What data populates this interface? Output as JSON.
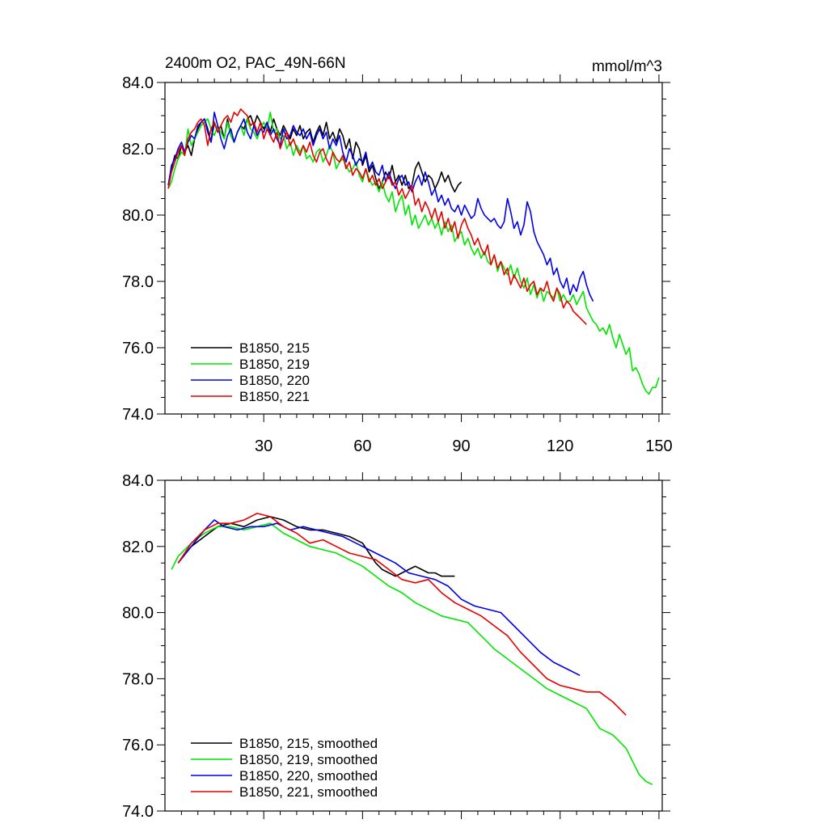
{
  "title": "2400m O2, PAC_49N-66N",
  "units": "mmol/m^3",
  "colors": {
    "B1850, 215": "#000000",
    "B1850, 219": "#00e600",
    "B1850, 220": "#0000e6",
    "B1850, 221": "#e60000"
  },
  "chart_data": [
    {
      "type": "line",
      "title": "2400m O2, PAC_49N-66N",
      "ylabel": "mmol/m^3",
      "xlim": [
        0,
        151
      ],
      "ylim": [
        74,
        84
      ],
      "x_ticks": [
        "30",
        "60",
        "90",
        "120",
        "150"
      ],
      "y_ticks": [
        "84.0",
        "82.0",
        "80.0",
        "78.0",
        "76.0",
        "74.0"
      ],
      "legend_position": "bottom-left",
      "series": [
        {
          "name": "B1850, 215",
          "color": "#000000",
          "x_start": 1,
          "values": [
            80.9,
            81.4,
            81.8,
            81.7,
            82.1,
            81.9,
            82.1,
            81.8,
            82.3,
            82.6,
            82.8,
            82.9,
            82.6,
            82.2,
            82.8,
            82.5,
            82.7,
            82.3,
            82.9,
            82.4,
            82.2,
            82.5,
            82.7,
            82.6,
            82.9,
            83.0,
            82.7,
            83.0,
            82.8,
            82.6,
            82.8,
            82.5,
            82.9,
            82.6,
            82.4,
            82.7,
            82.5,
            82.3,
            82.6,
            82.4,
            82.7,
            82.3,
            82.5,
            82.6,
            82.2,
            82.5,
            82.7,
            82.4,
            82.8,
            82.3,
            82.5,
            82.2,
            82.6,
            82.4,
            82.0,
            82.3,
            81.7,
            82.2,
            82.0,
            81.5,
            81.8,
            81.3,
            81.5,
            81.1,
            80.8,
            81.0,
            81.3,
            81.1,
            81.5,
            81.0,
            81.2,
            80.9,
            81.2,
            80.8,
            80.9,
            81.4,
            81.6,
            81.3,
            81.0,
            81.2,
            81.1,
            80.8,
            81.0,
            81.3,
            81.0,
            81.2,
            80.9,
            80.7,
            80.9,
            81.0
          ]
        },
        {
          "name": "B1850, 219",
          "color": "#00e600",
          "x_start": 1,
          "values": [
            80.8,
            81.0,
            81.4,
            81.7,
            81.9,
            81.8,
            82.6,
            82.1,
            82.3,
            82.5,
            82.7,
            82.8,
            82.9,
            82.6,
            82.4,
            82.7,
            82.5,
            82.3,
            82.8,
            82.4,
            82.2,
            82.5,
            82.7,
            82.4,
            82.9,
            82.6,
            82.5,
            82.3,
            82.6,
            82.8,
            82.6,
            83.1,
            82.5,
            82.6,
            82.3,
            82.4,
            82.0,
            82.2,
            81.8,
            82.1,
            81.9,
            82.1,
            81.7,
            81.8,
            81.6,
            81.9,
            82.0,
            81.6,
            81.8,
            82.1,
            81.9,
            81.4,
            81.6,
            81.7,
            81.5,
            81.3,
            81.4,
            81.6,
            81.2,
            81.0,
            81.4,
            81.1,
            80.9,
            81.0,
            80.7,
            81.0,
            80.6,
            80.4,
            80.7,
            80.1,
            80.4,
            80.6,
            80.0,
            80.3,
            79.7,
            80.0,
            79.6,
            79.8,
            80.0,
            79.7,
            79.9,
            79.6,
            79.8,
            79.4,
            79.8,
            79.5,
            79.7,
            79.2,
            79.4,
            79.5,
            79.1,
            79.3,
            79.0,
            78.8,
            79.0,
            78.7,
            78.9,
            78.6,
            78.5,
            78.8,
            78.3,
            78.6,
            78.4,
            78.2,
            78.5,
            78.1,
            78.4,
            78.0,
            77.8,
            78.1,
            77.6,
            77.9,
            77.5,
            77.8,
            77.4,
            77.7,
            77.6,
            77.5,
            77.8,
            77.4,
            77.6,
            77.4,
            77.4,
            77.6,
            77.3,
            77.5,
            77.7,
            77.2,
            77.0,
            76.8,
            76.7,
            76.5,
            76.6,
            76.4,
            76.7,
            76.3,
            76.0,
            76.4,
            76.1,
            75.8,
            76.0,
            75.3,
            75.4,
            75.2,
            74.9,
            74.7,
            74.6,
            74.8,
            74.8,
            75.1
          ]
        },
        {
          "name": "B1850, 220",
          "color": "#0000e6",
          "x_start": 1,
          "values": [
            80.9,
            81.5,
            81.7,
            82.0,
            82.2,
            81.9,
            82.2,
            82.4,
            82.3,
            82.7,
            82.8,
            82.9,
            82.5,
            82.2,
            83.1,
            82.7,
            82.3,
            82.0,
            82.4,
            82.6,
            82.2,
            82.5,
            82.7,
            82.9,
            82.5,
            82.3,
            82.7,
            82.4,
            82.6,
            82.5,
            82.8,
            82.4,
            82.6,
            82.3,
            82.1,
            82.6,
            82.3,
            82.4,
            82.7,
            82.5,
            82.4,
            82.6,
            82.3,
            82.5,
            82.1,
            82.4,
            82.6,
            82.3,
            82.5,
            82.0,
            82.3,
            82.1,
            82.4,
            81.9,
            81.6,
            82.0,
            81.8,
            81.5,
            81.7,
            81.6,
            81.9,
            81.4,
            81.6,
            81.3,
            81.2,
            81.5,
            81.0,
            81.3,
            81.0,
            80.8,
            81.1,
            81.2,
            80.9,
            81.0,
            80.7,
            81.0,
            81.2,
            80.9,
            81.3,
            81.0,
            80.6,
            80.8,
            80.4,
            80.6,
            80.3,
            80.5,
            80.2,
            80.1,
            80.3,
            80.0,
            80.3,
            80.1,
            79.9,
            80.0,
            80.5,
            80.2,
            80.0,
            79.9,
            79.8,
            79.9,
            79.7,
            79.6,
            79.8,
            80.5,
            80.1,
            79.6,
            79.8,
            79.4,
            79.7,
            80.4,
            80.1,
            79.5,
            79.2,
            79.0,
            78.8,
            78.5,
            78.7,
            78.2,
            78.4,
            78.0,
            77.8,
            78.1,
            77.6,
            77.9,
            77.7,
            78.1,
            78.3,
            77.9,
            77.6,
            77.4
          ]
        },
        {
          "name": "B1850, 221",
          "color": "#e60000",
          "x_start": 1,
          "values": [
            80.8,
            81.3,
            81.6,
            81.9,
            82.1,
            81.8,
            82.3,
            82.5,
            82.6,
            82.8,
            82.9,
            82.7,
            82.1,
            82.6,
            82.8,
            82.5,
            82.7,
            82.9,
            83.0,
            82.8,
            83.1,
            83.0,
            83.2,
            83.1,
            83.0,
            82.7,
            82.8,
            82.5,
            82.8,
            82.3,
            82.6,
            82.4,
            82.2,
            82.5,
            82.0,
            82.3,
            82.5,
            82.1,
            82.3,
            82.0,
            81.8,
            82.1,
            81.9,
            82.2,
            81.8,
            81.6,
            81.9,
            82.0,
            81.7,
            81.5,
            81.9,
            81.7,
            81.6,
            81.8,
            81.4,
            81.6,
            81.2,
            81.4,
            81.3,
            81.1,
            81.4,
            81.0,
            81.2,
            80.9,
            81.1,
            80.8,
            81.0,
            81.2,
            80.9,
            81.0,
            80.6,
            80.8,
            80.5,
            80.7,
            80.9,
            80.3,
            80.5,
            80.1,
            80.4,
            80.2,
            79.9,
            80.2,
            79.8,
            80.1,
            79.6,
            79.9,
            79.5,
            79.8,
            79.3,
            79.7,
            79.9,
            79.6,
            79.4,
            79.1,
            79.3,
            79.0,
            78.8,
            79.1,
            78.5,
            78.8,
            78.4,
            78.6,
            78.2,
            78.4,
            77.9,
            78.2,
            78.0,
            77.8,
            78.1,
            77.7,
            77.9,
            78.0,
            77.6,
            77.8,
            77.7,
            78.0,
            77.6,
            77.4,
            77.8,
            77.6,
            77.2,
            77.4,
            77.3,
            77.1,
            77.0,
            76.9,
            76.8,
            76.7
          ]
        }
      ]
    },
    {
      "type": "line",
      "xlim": [
        0,
        151
      ],
      "ylim": [
        74,
        84
      ],
      "y_ticks": [
        "84.0",
        "82.0",
        "80.0",
        "78.0",
        "76.0",
        "74.0"
      ],
      "legend_position": "bottom-left",
      "series": [
        {
          "name": "B1850, 215, smoothed",
          "color": "#000000",
          "x": [
            4,
            8,
            12,
            16,
            20,
            24,
            28,
            32,
            36,
            40,
            44,
            48,
            52,
            56,
            60,
            62,
            64,
            66,
            68,
            70,
            72,
            74,
            76,
            78,
            80,
            82,
            84,
            86,
            88
          ],
          "values": [
            81.5,
            82.0,
            82.3,
            82.6,
            82.7,
            82.6,
            82.8,
            82.9,
            82.8,
            82.6,
            82.5,
            82.5,
            82.4,
            82.3,
            82.1,
            81.8,
            81.5,
            81.3,
            81.2,
            81.1,
            81.2,
            81.3,
            81.4,
            81.3,
            81.2,
            81.2,
            81.1,
            81.1,
            81.1
          ]
        },
        {
          "name": "B1850, 219, smoothed",
          "color": "#00e600",
          "x": [
            2,
            4,
            8,
            12,
            16,
            20,
            24,
            28,
            32,
            36,
            40,
            44,
            48,
            52,
            56,
            60,
            64,
            68,
            72,
            76,
            80,
            84,
            88,
            92,
            96,
            100,
            104,
            108,
            112,
            116,
            120,
            124,
            128,
            132,
            136,
            140,
            144,
            146,
            148
          ],
          "values": [
            81.3,
            81.7,
            82.1,
            82.4,
            82.6,
            82.6,
            82.5,
            82.6,
            82.7,
            82.4,
            82.2,
            82.0,
            81.9,
            81.8,
            81.6,
            81.4,
            81.1,
            80.8,
            80.6,
            80.3,
            80.1,
            79.9,
            79.8,
            79.7,
            79.3,
            78.9,
            78.6,
            78.3,
            78.0,
            77.7,
            77.5,
            77.3,
            77.1,
            76.5,
            76.3,
            75.9,
            75.1,
            74.9,
            74.8
          ]
        },
        {
          "name": "B1850, 220, smoothed",
          "color": "#0000e6",
          "x": [
            4,
            8,
            12,
            15,
            18,
            22,
            26,
            30,
            34,
            38,
            42,
            46,
            50,
            54,
            58,
            62,
            66,
            70,
            74,
            78,
            82,
            86,
            90,
            94,
            98,
            102,
            106,
            110,
            114,
            118,
            122,
            126
          ],
          "values": [
            81.5,
            82.0,
            82.5,
            82.8,
            82.6,
            82.5,
            82.6,
            82.6,
            82.7,
            82.5,
            82.6,
            82.5,
            82.4,
            82.3,
            82.1,
            81.9,
            81.7,
            81.5,
            81.2,
            81.1,
            81.0,
            80.8,
            80.4,
            80.2,
            80.1,
            80.0,
            79.6,
            79.2,
            78.8,
            78.5,
            78.3,
            78.1
          ]
        },
        {
          "name": "B1850, 221, smoothed",
          "color": "#e60000",
          "x": [
            4,
            8,
            12,
            16,
            20,
            24,
            28,
            32,
            36,
            40,
            44,
            48,
            52,
            56,
            60,
            64,
            68,
            72,
            76,
            80,
            84,
            88,
            92,
            96,
            100,
            104,
            108,
            112,
            116,
            120,
            124,
            128,
            132,
            136,
            140
          ],
          "values": [
            81.5,
            82.1,
            82.5,
            82.7,
            82.7,
            82.8,
            83.0,
            82.9,
            82.6,
            82.4,
            82.1,
            82.2,
            82.0,
            81.8,
            81.7,
            81.6,
            81.3,
            81.0,
            80.9,
            81.0,
            80.6,
            80.3,
            80.1,
            79.9,
            79.6,
            79.3,
            78.8,
            78.4,
            78.0,
            77.8,
            77.7,
            77.6,
            77.6,
            77.3,
            76.9
          ]
        }
      ]
    }
  ]
}
